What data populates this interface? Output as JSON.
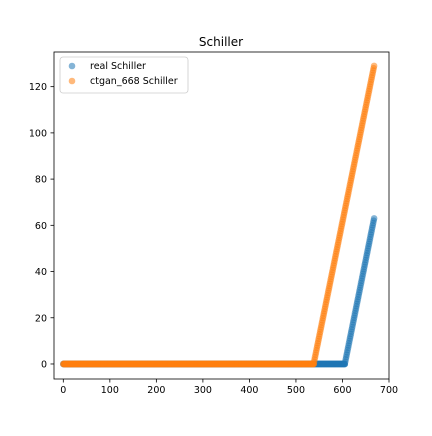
{
  "chart_data": {
    "type": "scatter",
    "title": "Schiller",
    "xlabel": "",
    "ylabel": "",
    "xlim": [
      -20,
      700
    ],
    "ylim": [
      -6.5,
      135
    ],
    "xticks": [
      0,
      100,
      200,
      300,
      400,
      500,
      600,
      700
    ],
    "yticks": [
      0,
      20,
      40,
      60,
      80,
      100,
      120
    ],
    "grid": false,
    "legend": {
      "position": "top-left"
    },
    "series": [
      {
        "name": "real Schiller",
        "color": "#1f77b4",
        "alpha": 0.55,
        "segments": [
          {
            "x_start": 0,
            "x_end": 605,
            "y_start": 0,
            "y_end": 0
          },
          {
            "x_start": 605,
            "x_end": 668,
            "y_start": 0,
            "y_end": 63
          }
        ]
      },
      {
        "name": "ctgan_668 Schiller",
        "color": "#ff7f0e",
        "alpha": 0.55,
        "segments": [
          {
            "x_start": 0,
            "x_end": 538,
            "y_start": 0,
            "y_end": 0
          },
          {
            "x_start": 538,
            "x_end": 668,
            "y_start": 0,
            "y_end": 129
          }
        ]
      }
    ]
  }
}
